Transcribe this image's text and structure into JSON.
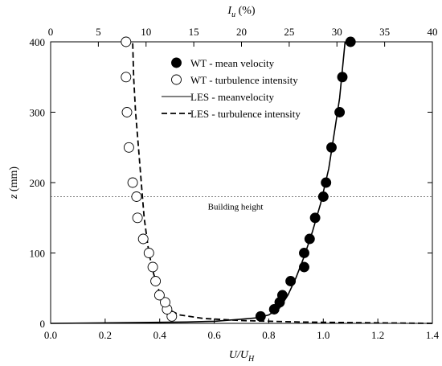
{
  "chart_data": {
    "type": "scatter",
    "axes": {
      "bottom": {
        "label_main": "U/U",
        "label_sub": "H",
        "range": [
          0.0,
          1.4
        ],
        "ticks": [
          "0.0",
          "0.2",
          "0.4",
          "0.6",
          "0.8",
          "1.0",
          "1.2",
          "1.4"
        ],
        "tick_values": [
          0.0,
          0.2,
          0.4,
          0.6,
          0.8,
          1.0,
          1.2,
          1.4
        ]
      },
      "top": {
        "label_main": "I",
        "label_sub": "u",
        "label_suffix": " (%)",
        "range": [
          0,
          40
        ],
        "ticks": [
          "0",
          "5",
          "10",
          "15",
          "20",
          "25",
          "30",
          "35",
          "40"
        ],
        "tick_values": [
          0,
          5,
          10,
          15,
          20,
          25,
          30,
          35,
          40
        ]
      },
      "left": {
        "label": "z (mm)",
        "range": [
          0,
          400
        ],
        "ticks": [
          "0",
          "100",
          "200",
          "300",
          "400"
        ],
        "tick_values": [
          0,
          100,
          200,
          300,
          400
        ]
      }
    },
    "grid": false,
    "legend_position": "top-right",
    "series": [
      {
        "name": "WT - mean velocity",
        "kind": "scatter",
        "marker": "filled-circle",
        "axis": "bottom",
        "points": [
          {
            "x": 0.77,
            "z": 10
          },
          {
            "x": 0.82,
            "z": 20
          },
          {
            "x": 0.84,
            "z": 30
          },
          {
            "x": 0.85,
            "z": 40
          },
          {
            "x": 0.88,
            "z": 60
          },
          {
            "x": 0.93,
            "z": 80
          },
          {
            "x": 0.93,
            "z": 100
          },
          {
            "x": 0.95,
            "z": 120
          },
          {
            "x": 0.97,
            "z": 150
          },
          {
            "x": 1.0,
            "z": 180
          },
          {
            "x": 1.01,
            "z": 200
          },
          {
            "x": 1.03,
            "z": 250
          },
          {
            "x": 1.06,
            "z": 300
          },
          {
            "x": 1.07,
            "z": 350
          },
          {
            "x": 1.1,
            "z": 400
          }
        ]
      },
      {
        "name": "WT - turbulence intensity",
        "kind": "scatter",
        "marker": "open-circle",
        "axis": "top",
        "points": [
          {
            "x": 12.7,
            "z": 10
          },
          {
            "x": 12.2,
            "z": 20
          },
          {
            "x": 12.0,
            "z": 30
          },
          {
            "x": 11.4,
            "z": 40
          },
          {
            "x": 11.0,
            "z": 60
          },
          {
            "x": 10.7,
            "z": 80
          },
          {
            "x": 10.3,
            "z": 100
          },
          {
            "x": 9.7,
            "z": 120
          },
          {
            "x": 9.1,
            "z": 150
          },
          {
            "x": 9.0,
            "z": 180
          },
          {
            "x": 8.6,
            "z": 200
          },
          {
            "x": 8.2,
            "z": 250
          },
          {
            "x": 8.0,
            "z": 300
          },
          {
            "x": 7.9,
            "z": 350
          },
          {
            "x": 7.9,
            "z": 400
          }
        ]
      },
      {
        "name": "LES - meanvelocity",
        "kind": "line",
        "style": "solid",
        "axis": "bottom",
        "points": [
          {
            "x": 0.0,
            "z": 0
          },
          {
            "x": 0.3,
            "z": 1
          },
          {
            "x": 0.5,
            "z": 2
          },
          {
            "x": 0.6,
            "z": 3
          },
          {
            "x": 0.7,
            "z": 6
          },
          {
            "x": 0.76,
            "z": 8
          },
          {
            "x": 0.8,
            "z": 12
          },
          {
            "x": 0.84,
            "z": 22
          },
          {
            "x": 0.87,
            "z": 40
          },
          {
            "x": 0.9,
            "z": 65
          },
          {
            "x": 0.93,
            "z": 95
          },
          {
            "x": 0.96,
            "z": 130
          },
          {
            "x": 0.99,
            "z": 170
          },
          {
            "x": 1.02,
            "z": 220
          },
          {
            "x": 1.04,
            "z": 270
          },
          {
            "x": 1.06,
            "z": 320
          },
          {
            "x": 1.07,
            "z": 360
          },
          {
            "x": 1.08,
            "z": 400
          }
        ]
      },
      {
        "name": "LES - turbulence intensity",
        "kind": "line",
        "style": "dashed",
        "axis": "top",
        "points": [
          {
            "x": 40.0,
            "z": 0
          },
          {
            "x": 32.0,
            "z": 1
          },
          {
            "x": 26.0,
            "z": 2
          },
          {
            "x": 20.0,
            "z": 4
          },
          {
            "x": 16.0,
            "z": 7
          },
          {
            "x": 13.5,
            "z": 12
          },
          {
            "x": 12.3,
            "z": 20
          },
          {
            "x": 11.5,
            "z": 40
          },
          {
            "x": 10.8,
            "z": 70
          },
          {
            "x": 10.3,
            "z": 100
          },
          {
            "x": 9.8,
            "z": 150
          },
          {
            "x": 9.5,
            "z": 200
          },
          {
            "x": 9.2,
            "z": 250
          },
          {
            "x": 8.9,
            "z": 300
          },
          {
            "x": 8.7,
            "z": 350
          },
          {
            "x": 8.6,
            "z": 400
          }
        ]
      }
    ],
    "reference_lines": [
      {
        "z": 180,
        "style": "dotted",
        "label": "Building height"
      }
    ]
  }
}
